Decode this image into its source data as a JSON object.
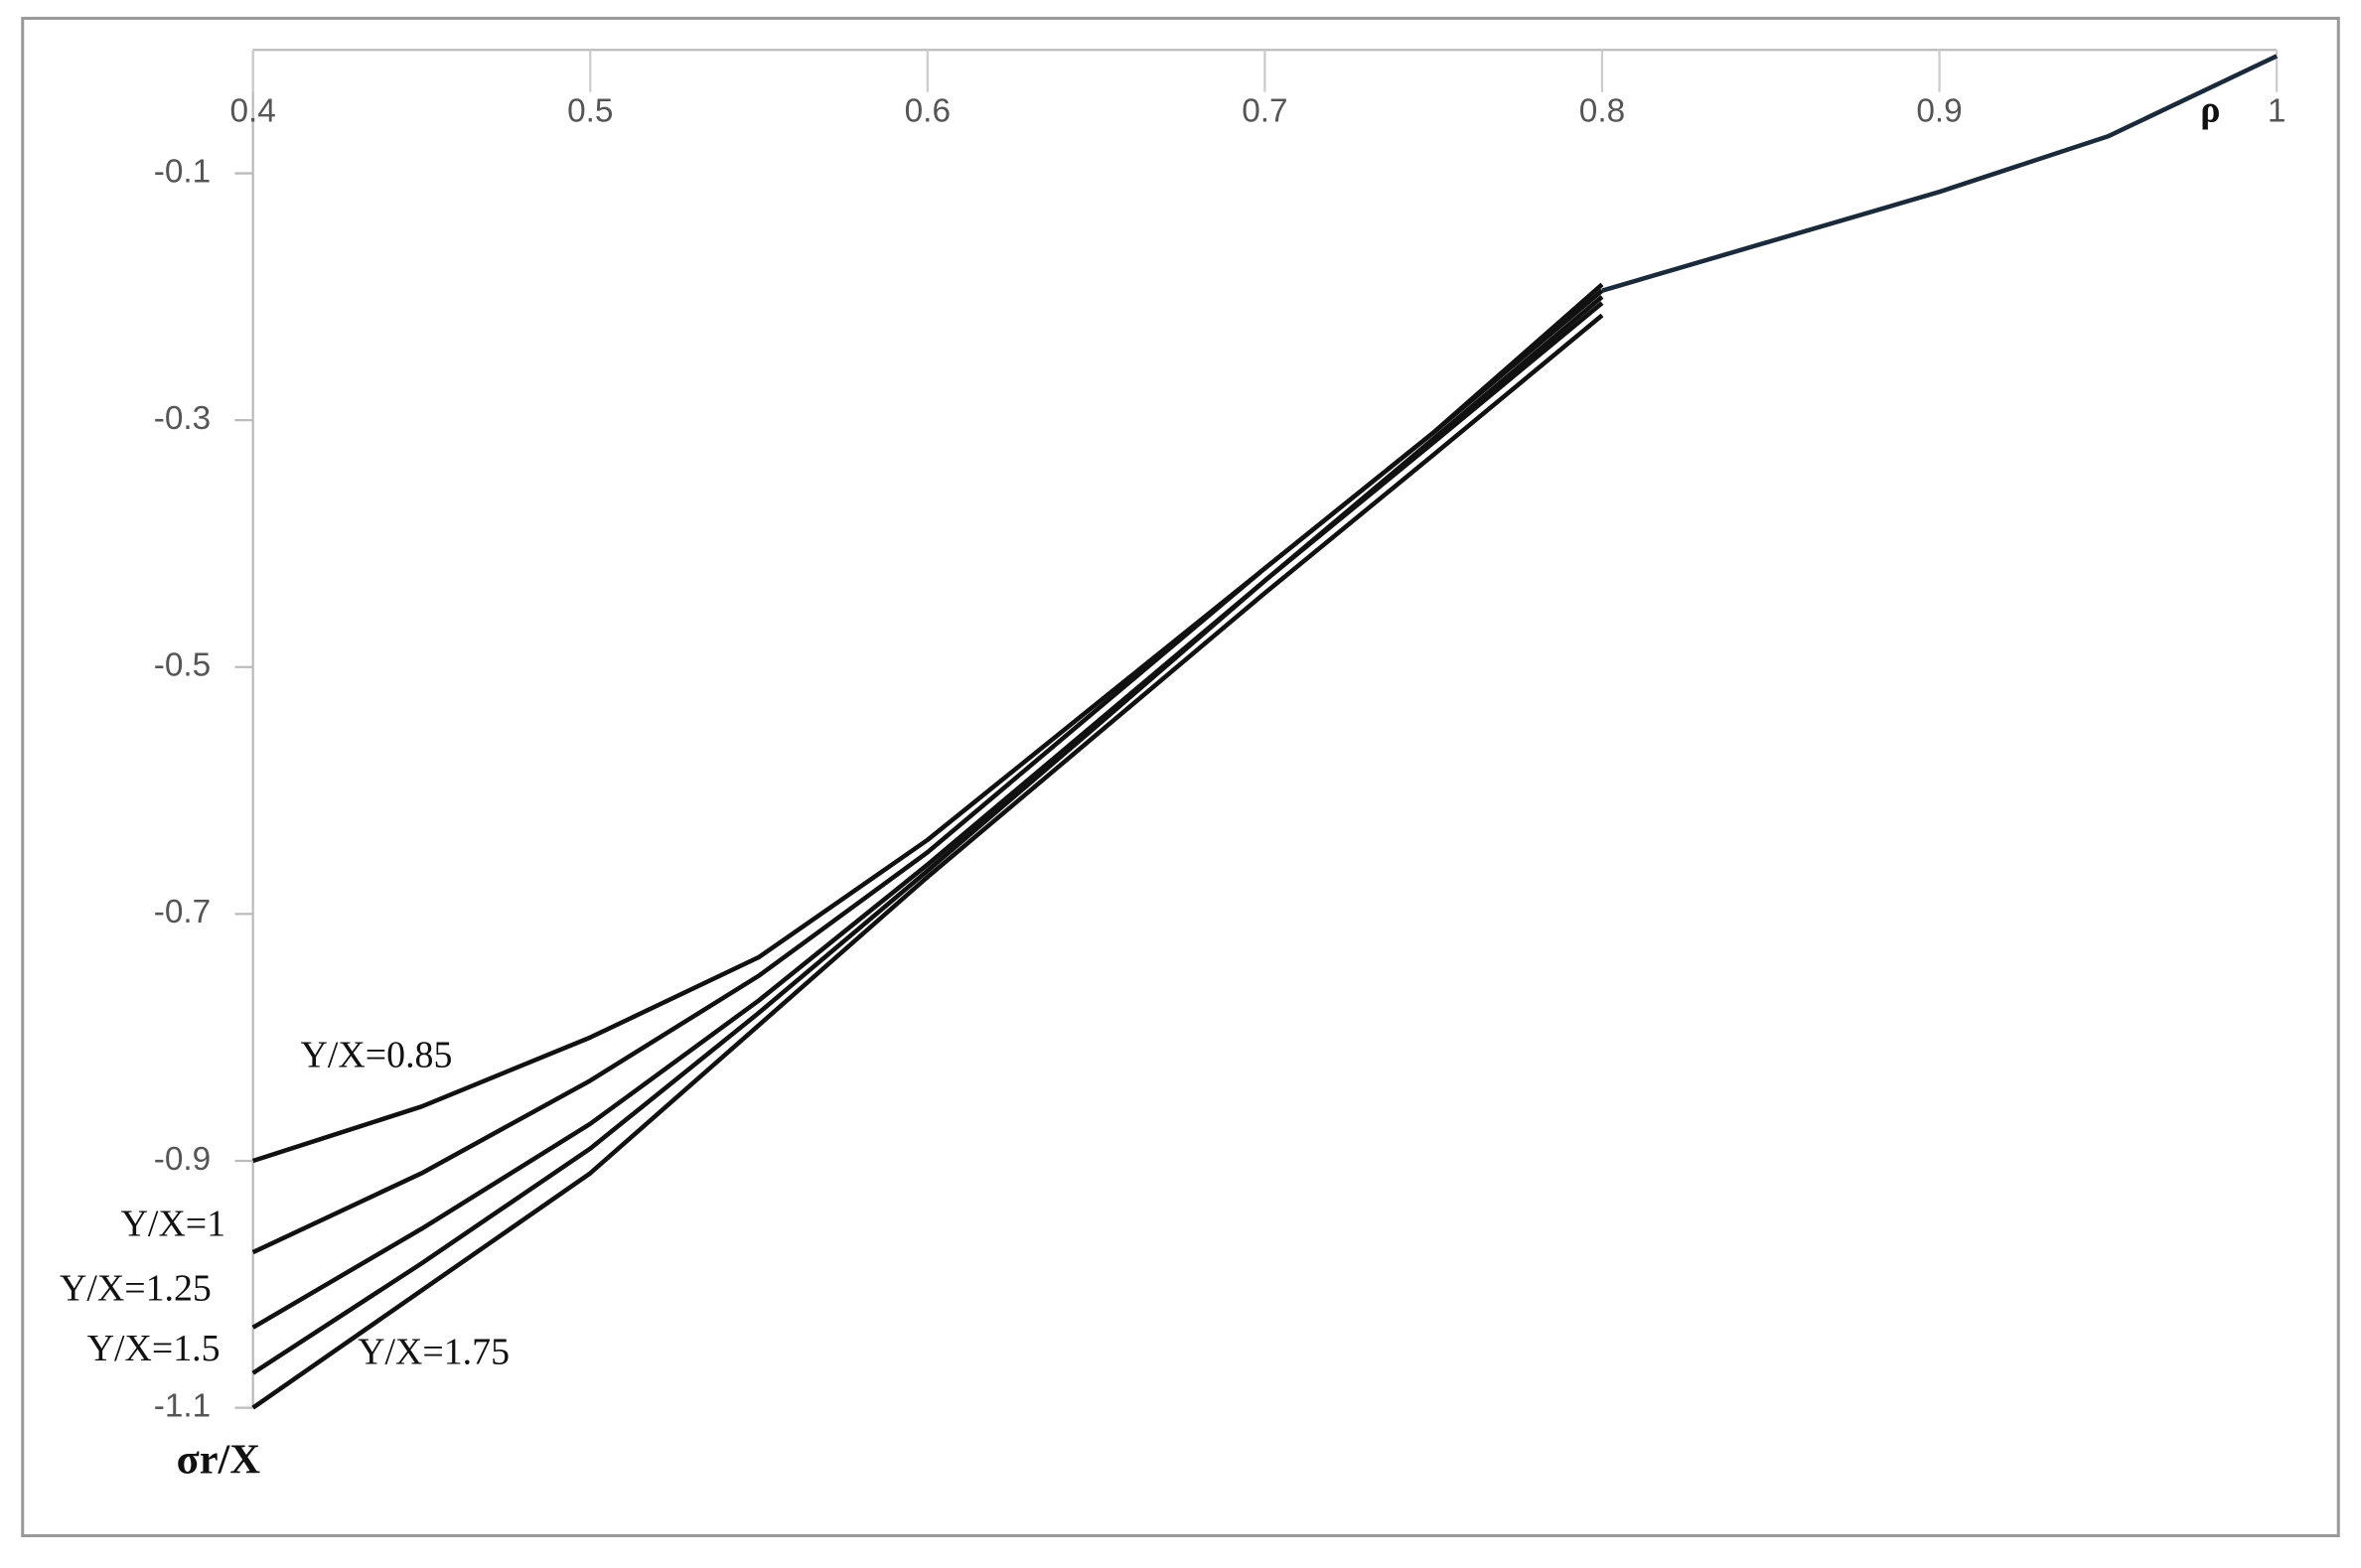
{
  "chart_data": {
    "type": "line",
    "x_label": "ρ",
    "y_label": "σr/X",
    "x": [
      0.4,
      0.45,
      0.5,
      0.55,
      0.6,
      0.65,
      0.7,
      0.75,
      0.8,
      0.85,
      0.9,
      0.95,
      1
    ],
    "series": [
      {
        "name": "Y/X=0.85",
        "color": "#111111",
        "values": [
          -0.9,
          -0.856,
          -0.8,
          -0.735,
          -0.64,
          -0.53,
          -0.42,
          -0.31,
          -0.19,
          null,
          null,
          null,
          null
        ]
      },
      {
        "name": "Y/X=1",
        "color": "#111111",
        "values": [
          -0.974,
          -0.91,
          -0.835,
          -0.75,
          -0.65,
          -0.535,
          -0.42,
          -0.31,
          -0.195,
          null,
          null,
          null,
          null
        ]
      },
      {
        "name": "Y/X=1.25",
        "color": "#111111",
        "values": [
          -1.035,
          -0.955,
          -0.87,
          -0.77,
          -0.66,
          -0.545,
          -0.43,
          -0.315,
          -0.2,
          null,
          null,
          null,
          null
        ]
      },
      {
        "name": "Y/X=1.5",
        "color": "#111111",
        "values": [
          -1.072,
          -0.983,
          -0.89,
          -0.78,
          -0.665,
          -0.548,
          -0.43,
          -0.318,
          -0.205,
          null,
          null,
          null,
          null
        ]
      },
      {
        "name": "Y/X=1.75",
        "color": "#111111",
        "values": [
          -1.1,
          -1.005,
          -0.91,
          -0.79,
          -0.67,
          -0.555,
          -0.44,
          -0.328,
          -0.215,
          null,
          null,
          null,
          null
        ]
      },
      {
        "color": "#1a2a3a",
        "values": [
          null,
          null,
          null,
          null,
          null,
          null,
          null,
          null,
          -0.195,
          -0.155,
          -0.115,
          -0.07,
          -0.005
        ]
      }
    ],
    "xlim": [
      0.4,
      1
    ],
    "xticks": [
      {
        "value": 0.4,
        "label": "0.4"
      },
      0.5,
      0.6,
      0.7,
      0.8,
      0.9,
      1
    ],
    "ylim": [
      -1.1,
      0
    ],
    "yticks": [
      -0.1,
      -0.3,
      -0.5,
      -0.7,
      -0.9,
      -1.1
    ]
  }
}
